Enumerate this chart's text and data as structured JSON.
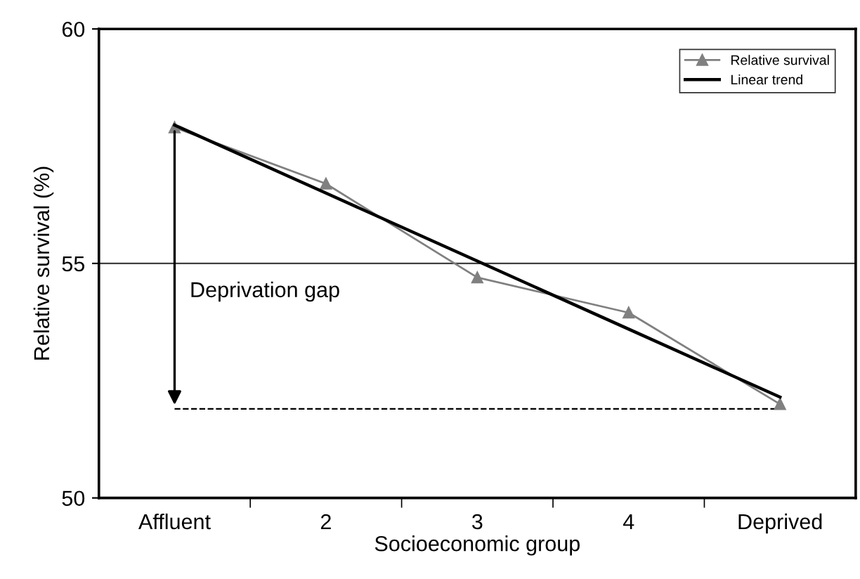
{
  "chart_data": {
    "type": "line",
    "xlabel": "Socioeconomic group",
    "ylabel": "Relative survival (%)",
    "categories": [
      "Affluent",
      "2",
      "3",
      "4",
      "Deprived"
    ],
    "series": [
      {
        "name": "Relative survival",
        "color": "#808080",
        "values": [
          57.9,
          56.7,
          54.7,
          53.95,
          52.0
        ],
        "marker": "triangle"
      },
      {
        "name": "Linear trend",
        "color": "#000000",
        "values": [
          57.95,
          56.5,
          55.05,
          53.6,
          52.15
        ],
        "marker": "none"
      }
    ],
    "ylim": [
      50,
      60
    ],
    "yticks": [
      50,
      55,
      60
    ],
    "grid": "y",
    "legend": "top right",
    "ref_lines": [
      {
        "axis": "y",
        "value": 51.9,
        "color": "#000000",
        "line_style": "dashed"
      }
    ],
    "annotations": [
      "Deprivation gap"
    ]
  }
}
